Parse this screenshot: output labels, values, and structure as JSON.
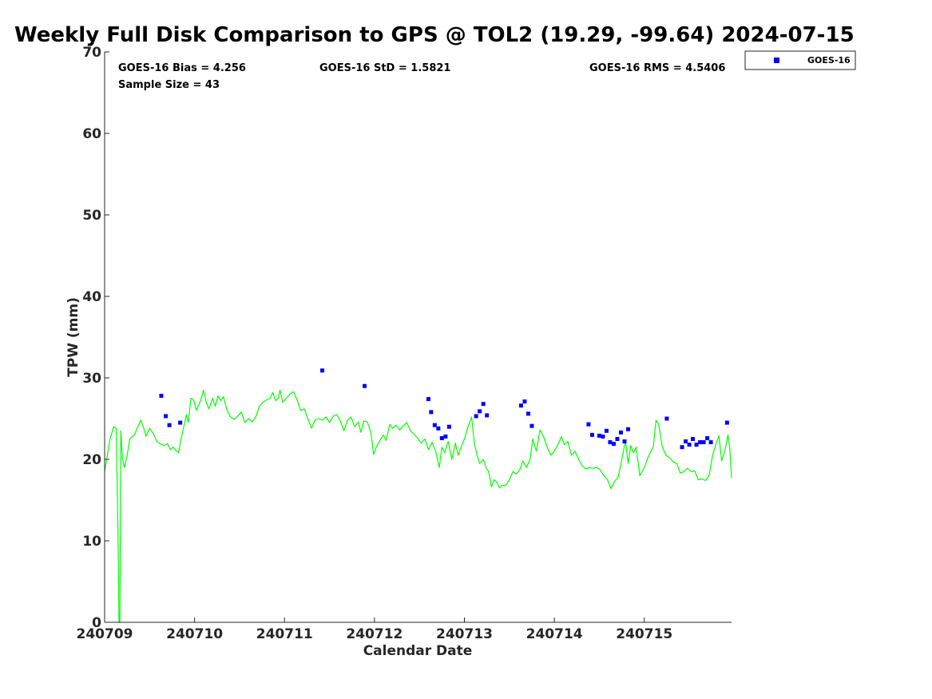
{
  "chart_data": {
    "type": "scatter",
    "title": "Weekly Full Disk Comparison to GPS @ TOL2 (19.29, -99.64) 2024-07-15",
    "xlabel": "Calendar Date",
    "ylabel": "TPW (mm)",
    "xlim": [
      0,
      6.97
    ],
    "ylim": [
      0,
      70
    ],
    "x_tick_values": [
      0,
      1,
      2,
      3,
      4,
      5,
      6
    ],
    "x_tick_labels": [
      "240709",
      "240710",
      "240711",
      "240712",
      "240713",
      "240714",
      "240715"
    ],
    "y_ticks": [
      0,
      10,
      20,
      30,
      40,
      50,
      60,
      70
    ],
    "x_note": "x values are days after the 240709 tick",
    "stats": {
      "bias": "GOES-16 Bias = 4.256",
      "std": "GOES-16 StD = 1.5821",
      "rms": "GOES-16 RMS = 4.5406",
      "sample": "Sample Size = 43"
    },
    "legend": {
      "position": "top-right",
      "entries": [
        "GOES-16"
      ]
    },
    "series": [
      {
        "name": "GOES-16",
        "kind": "scatter",
        "color": "#0000ff",
        "points": [
          [
            0.63,
            27.8
          ],
          [
            0.68,
            25.3
          ],
          [
            0.72,
            24.2
          ],
          [
            0.84,
            24.5
          ],
          [
            2.42,
            30.9
          ],
          [
            2.89,
            29.0
          ],
          [
            3.6,
            27.4
          ],
          [
            3.63,
            25.8
          ],
          [
            3.67,
            24.2
          ],
          [
            3.71,
            23.8
          ],
          [
            3.75,
            22.6
          ],
          [
            3.79,
            22.8
          ],
          [
            3.83,
            24.0
          ],
          [
            4.13,
            25.3
          ],
          [
            4.17,
            25.9
          ],
          [
            4.21,
            26.8
          ],
          [
            4.25,
            25.4
          ],
          [
            4.63,
            26.6
          ],
          [
            4.67,
            27.1
          ],
          [
            4.71,
            25.6
          ],
          [
            4.75,
            24.1
          ],
          [
            5.38,
            24.3
          ],
          [
            5.42,
            23.0
          ],
          [
            5.5,
            22.9
          ],
          [
            5.54,
            22.8
          ],
          [
            5.58,
            23.5
          ],
          [
            5.62,
            22.1
          ],
          [
            5.66,
            21.9
          ],
          [
            5.7,
            22.5
          ],
          [
            5.74,
            23.3
          ],
          [
            5.78,
            22.2
          ],
          [
            5.82,
            23.7
          ],
          [
            6.25,
            25.0
          ],
          [
            6.42,
            21.5
          ],
          [
            6.46,
            22.2
          ],
          [
            6.5,
            21.8
          ],
          [
            6.54,
            22.5
          ],
          [
            6.58,
            21.8
          ],
          [
            6.62,
            22.1
          ],
          [
            6.66,
            22.1
          ],
          [
            6.7,
            22.6
          ],
          [
            6.74,
            22.1
          ],
          [
            6.92,
            24.5
          ]
        ]
      },
      {
        "kind": "line",
        "color": "#00ff00",
        "points": [
          [
            0.0,
            18.5
          ],
          [
            0.03,
            20.5
          ],
          [
            0.06,
            22.5
          ],
          [
            0.1,
            24.0
          ],
          [
            0.13,
            23.8
          ],
          [
            0.15,
            10.0
          ],
          [
            0.16,
            0.0
          ],
          [
            0.17,
            0.0
          ],
          [
            0.18,
            23.5
          ],
          [
            0.2,
            20.0
          ],
          [
            0.22,
            19.0
          ],
          [
            0.25,
            20.5
          ],
          [
            0.28,
            22.5
          ],
          [
            0.33,
            23.0
          ],
          [
            0.37,
            24.0
          ],
          [
            0.4,
            24.8
          ],
          [
            0.43,
            24.0
          ],
          [
            0.46,
            22.8
          ],
          [
            0.5,
            23.8
          ],
          [
            0.54,
            23.2
          ],
          [
            0.58,
            22.2
          ],
          [
            0.62,
            21.9
          ],
          [
            0.66,
            21.7
          ],
          [
            0.7,
            21.9
          ],
          [
            0.73,
            21.2
          ],
          [
            0.76,
            21.5
          ],
          [
            0.79,
            21.1
          ],
          [
            0.82,
            20.8
          ],
          [
            0.85,
            22.5
          ],
          [
            0.88,
            24.0
          ],
          [
            0.91,
            25.5
          ],
          [
            0.93,
            24.5
          ],
          [
            0.96,
            27.5
          ],
          [
            0.99,
            27.3
          ],
          [
            1.02,
            26.0
          ],
          [
            1.06,
            27.0
          ],
          [
            1.1,
            28.5
          ],
          [
            1.13,
            27.0
          ],
          [
            1.16,
            26.2
          ],
          [
            1.2,
            27.5
          ],
          [
            1.23,
            26.5
          ],
          [
            1.26,
            27.8
          ],
          [
            1.29,
            27.2
          ],
          [
            1.32,
            27.7
          ],
          [
            1.36,
            26.0
          ],
          [
            1.4,
            25.2
          ],
          [
            1.44,
            24.9
          ],
          [
            1.48,
            25.3
          ],
          [
            1.52,
            25.8
          ],
          [
            1.56,
            24.5
          ],
          [
            1.6,
            25.0
          ],
          [
            1.64,
            24.6
          ],
          [
            1.68,
            25.2
          ],
          [
            1.72,
            26.5
          ],
          [
            1.76,
            27.0
          ],
          [
            1.8,
            27.3
          ],
          [
            1.84,
            27.5
          ],
          [
            1.87,
            28.2
          ],
          [
            1.9,
            27.2
          ],
          [
            1.93,
            27.5
          ],
          [
            1.95,
            28.5
          ],
          [
            1.98,
            27.0
          ],
          [
            2.02,
            27.5
          ],
          [
            2.06,
            28.0
          ],
          [
            2.1,
            28.3
          ],
          [
            2.14,
            27.3
          ],
          [
            2.18,
            26.0
          ],
          [
            2.22,
            26.2
          ],
          [
            2.26,
            25.0
          ],
          [
            2.3,
            23.8
          ],
          [
            2.34,
            24.8
          ],
          [
            2.38,
            25.0
          ],
          [
            2.42,
            24.8
          ],
          [
            2.46,
            25.2
          ],
          [
            2.5,
            24.5
          ],
          [
            2.54,
            25.3
          ],
          [
            2.58,
            25.5
          ],
          [
            2.62,
            24.7
          ],
          [
            2.66,
            23.5
          ],
          [
            2.7,
            24.8
          ],
          [
            2.74,
            25.2
          ],
          [
            2.78,
            24.0
          ],
          [
            2.82,
            24.6
          ],
          [
            2.85,
            23.3
          ],
          [
            2.88,
            24.7
          ],
          [
            2.92,
            24.6
          ],
          [
            2.96,
            23.3
          ],
          [
            2.99,
            20.6
          ],
          [
            3.02,
            21.5
          ],
          [
            3.06,
            22.3
          ],
          [
            3.1,
            23.0
          ],
          [
            3.13,
            22.3
          ],
          [
            3.17,
            24.3
          ],
          [
            3.2,
            23.8
          ],
          [
            3.24,
            24.2
          ],
          [
            3.28,
            23.6
          ],
          [
            3.32,
            24.1
          ],
          [
            3.36,
            24.5
          ],
          [
            3.4,
            23.5
          ],
          [
            3.44,
            23.1
          ],
          [
            3.48,
            22.6
          ],
          [
            3.52,
            22.0
          ],
          [
            3.56,
            22.5
          ],
          [
            3.6,
            21.2
          ],
          [
            3.64,
            22.1
          ],
          [
            3.68,
            21.0
          ],
          [
            3.72,
            19.0
          ],
          [
            3.75,
            21.5
          ],
          [
            3.78,
            20.8
          ],
          [
            3.82,
            22.2
          ],
          [
            3.86,
            20.0
          ],
          [
            3.9,
            22.0
          ],
          [
            3.93,
            20.5
          ],
          [
            3.97,
            21.7
          ],
          [
            4.0,
            22.5
          ],
          [
            4.04,
            24.0
          ],
          [
            4.08,
            25.2
          ],
          [
            4.11,
            22.0
          ],
          [
            4.14,
            20.5
          ],
          [
            4.17,
            19.5
          ],
          [
            4.21,
            20.0
          ],
          [
            4.24,
            19.0
          ],
          [
            4.27,
            18.5
          ],
          [
            4.3,
            16.6
          ],
          [
            4.33,
            17.5
          ],
          [
            4.36,
            17.2
          ],
          [
            4.39,
            16.5
          ],
          [
            4.42,
            16.8
          ],
          [
            4.46,
            16.8
          ],
          [
            4.5,
            17.5
          ],
          [
            4.54,
            18.5
          ],
          [
            4.58,
            18.2
          ],
          [
            4.62,
            18.8
          ],
          [
            4.65,
            19.8
          ],
          [
            4.69,
            19.0
          ],
          [
            4.73,
            20.0
          ],
          [
            4.76,
            22.5
          ],
          [
            4.8,
            21.0
          ],
          [
            4.84,
            23.6
          ],
          [
            4.88,
            22.8
          ],
          [
            4.92,
            21.5
          ],
          [
            4.96,
            20.5
          ],
          [
            5.0,
            21.0
          ],
          [
            5.04,
            21.8
          ],
          [
            5.08,
            22.8
          ],
          [
            5.11,
            21.8
          ],
          [
            5.15,
            22.2
          ],
          [
            5.19,
            20.5
          ],
          [
            5.23,
            21.0
          ],
          [
            5.27,
            20.0
          ],
          [
            5.31,
            19.2
          ],
          [
            5.35,
            18.8
          ],
          [
            5.39,
            19.0
          ],
          [
            5.43,
            18.9
          ],
          [
            5.47,
            19.0
          ],
          [
            5.51,
            18.7
          ],
          [
            5.55,
            18.0
          ],
          [
            5.59,
            17.5
          ],
          [
            5.63,
            16.4
          ],
          [
            5.67,
            17.3
          ],
          [
            5.71,
            17.8
          ],
          [
            5.75,
            20.0
          ],
          [
            5.79,
            22.3
          ],
          [
            5.82,
            19.5
          ],
          [
            5.85,
            21.7
          ],
          [
            5.88,
            20.8
          ],
          [
            5.91,
            21.5
          ],
          [
            5.95,
            18.0
          ],
          [
            6.0,
            19.0
          ],
          [
            6.05,
            20.5
          ],
          [
            6.1,
            21.5
          ],
          [
            6.13,
            24.8
          ],
          [
            6.16,
            24.3
          ],
          [
            6.2,
            21.5
          ],
          [
            6.24,
            20.5
          ],
          [
            6.28,
            20.2
          ],
          [
            6.32,
            19.7
          ],
          [
            6.36,
            19.5
          ],
          [
            6.4,
            18.3
          ],
          [
            6.44,
            18.5
          ],
          [
            6.48,
            18.9
          ],
          [
            6.52,
            18.5
          ],
          [
            6.56,
            18.6
          ],
          [
            6.6,
            17.5
          ],
          [
            6.64,
            17.6
          ],
          [
            6.68,
            17.4
          ],
          [
            6.72,
            18.0
          ],
          [
            6.76,
            20.5
          ],
          [
            6.8,
            22.0
          ],
          [
            6.83,
            22.9
          ],
          [
            6.86,
            19.8
          ],
          [
            6.9,
            21.2
          ],
          [
            6.93,
            23.0
          ],
          [
            6.95,
            21.5
          ],
          [
            6.97,
            17.7
          ]
        ]
      }
    ]
  }
}
